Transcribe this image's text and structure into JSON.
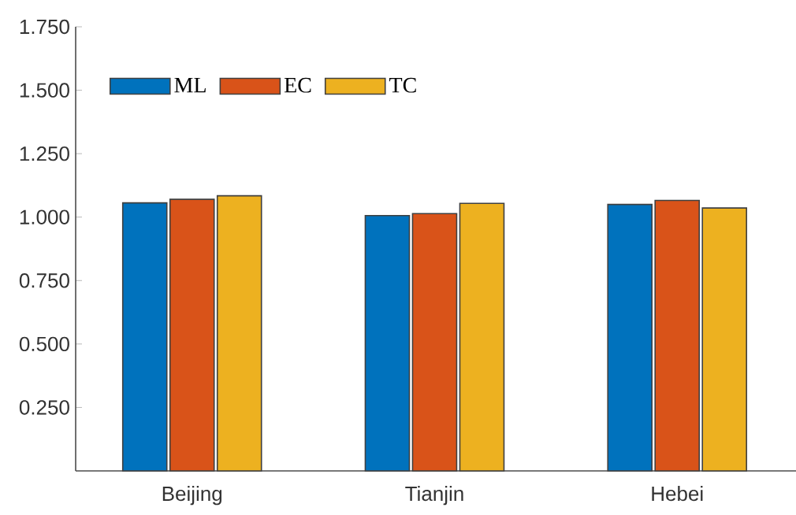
{
  "chart_data": {
    "type": "bar",
    "categories": [
      "Beijing",
      "Tianjin",
      "Hebei"
    ],
    "series": [
      {
        "name": "ML",
        "color": "#0072bd",
        "values": [
          1.056,
          1.006,
          1.05
        ]
      },
      {
        "name": "EC",
        "color": "#d95319",
        "values": [
          1.07,
          1.014,
          1.066
        ]
      },
      {
        "name": "TC",
        "color": "#edb120",
        "values": [
          1.084,
          1.054,
          1.036
        ]
      }
    ],
    "ylim": [
      0,
      1.75
    ],
    "yticks": [
      {
        "value": 0.25,
        "label": "0.250"
      },
      {
        "value": 0.5,
        "label": "0.500"
      },
      {
        "value": 0.75,
        "label": "0.750"
      },
      {
        "value": 1.0,
        "label": "1.000"
      },
      {
        "value": 1.25,
        "label": "1.250"
      },
      {
        "value": 1.5,
        "label": "1.500"
      },
      {
        "value": 1.75,
        "label": "1.750"
      }
    ],
    "grid": false,
    "legend": "top left"
  }
}
